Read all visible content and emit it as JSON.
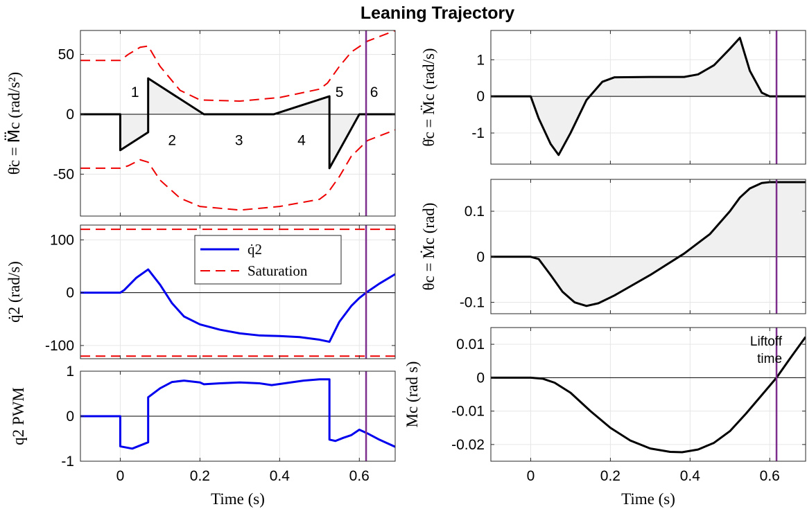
{
  "figure_title": "Leaning Trajectory",
  "colors": {
    "blue": "#0000ee",
    "red": "#ee0000",
    "black": "#000000",
    "purple": "#7e2f8e",
    "fill": "#f0f0f0",
    "grid": "#e6e6e6"
  },
  "chart_data": [
    {
      "id": "jerk",
      "type": "line",
      "ylabel": "θ̈c = M⃛c (rad/s²)",
      "xlim": [
        -0.1,
        0.69
      ],
      "ylim": [
        -85,
        70
      ],
      "yticks": [
        -50,
        0,
        50
      ],
      "ytick_labels": [
        "-50",
        "0",
        "50"
      ],
      "grid": true,
      "liftoff_time": 0.617,
      "fill_signal": true,
      "signal": {
        "color": "black",
        "x": [
          -0.1,
          0,
          0,
          0.07,
          0.07,
          0.21,
          0.385,
          0.525,
          0.525,
          0.6,
          0.69
        ],
        "y": [
          0,
          0,
          -30,
          -15,
          30,
          0,
          0,
          15,
          -45,
          0,
          0
        ]
      },
      "bounds": [
        {
          "color": "red",
          "x": [
            -0.1,
            0,
            0.02,
            0.05,
            0.07,
            0.1,
            0.15,
            0.2,
            0.3,
            0.4,
            0.5,
            0.52,
            0.55,
            0.58,
            0.62,
            0.69
          ],
          "y": [
            45,
            45,
            50,
            56,
            57,
            40,
            20,
            12,
            11,
            14,
            21,
            26,
            40,
            52,
            61,
            70
          ]
        },
        {
          "color": "red",
          "x": [
            -0.1,
            0,
            0.02,
            0.05,
            0.07,
            0.1,
            0.15,
            0.2,
            0.3,
            0.4,
            0.5,
            0.52,
            0.55,
            0.58,
            0.62,
            0.69
          ],
          "y": [
            -45,
            -45,
            -43,
            -38,
            -40,
            -55,
            -70,
            -77,
            -80,
            -77,
            -71,
            -66,
            -52,
            -35,
            -22,
            -13
          ]
        }
      ],
      "segment_labels": [
        {
          "text": "1",
          "x": 0.037,
          "y": 19
        },
        {
          "text": "2",
          "x": 0.13,
          "y": -21
        },
        {
          "text": "3",
          "x": 0.298,
          "y": -21
        },
        {
          "text": "4",
          "x": 0.455,
          "y": -21
        },
        {
          "text": "5",
          "x": 0.55,
          "y": 19
        },
        {
          "text": "6",
          "x": 0.637,
          "y": 19
        }
      ]
    },
    {
      "id": "qdot",
      "type": "line",
      "ylabel": "q̇2 (rad/s)",
      "xlim": [
        -0.1,
        0.69
      ],
      "ylim": [
        -125,
        128
      ],
      "yticks": [
        -100,
        0,
        100
      ],
      "ytick_labels": [
        "-100",
        "0",
        "100"
      ],
      "grid": true,
      "liftoff_time": 0.617,
      "legend": {
        "location": "top-right",
        "entries": [
          {
            "label": "q̇2",
            "style": "solid",
            "color": "blue"
          },
          {
            "label": "Saturation",
            "style": "dashed",
            "color": "red"
          }
        ]
      },
      "signal": {
        "color": "blue",
        "x": [
          -0.1,
          0,
          0.01,
          0.04,
          0.07,
          0.1,
          0.13,
          0.16,
          0.2,
          0.25,
          0.3,
          0.35,
          0.4,
          0.45,
          0.5,
          0.525,
          0.55,
          0.58,
          0.6,
          0.617,
          0.65,
          0.69
        ],
        "y": [
          0,
          0,
          5,
          28,
          44,
          15,
          -20,
          -45,
          -60,
          -70,
          -77,
          -81,
          -82,
          -84,
          -89,
          -93,
          -55,
          -25,
          -10,
          0,
          17,
          35
        ]
      },
      "bounds": [
        {
          "color": "red",
          "x": [
            -0.1,
            0.69
          ],
          "y": [
            120,
            120
          ]
        },
        {
          "color": "red",
          "x": [
            -0.1,
            0.69
          ],
          "y": [
            -120,
            -120
          ]
        }
      ]
    },
    {
      "id": "pwm",
      "type": "line",
      "ylabel": "q2 PWM",
      "xlabel": "Time (s)",
      "xlim": [
        -0.1,
        0.69
      ],
      "ylim": [
        -1,
        1
      ],
      "yticks": [
        -1,
        0,
        1
      ],
      "ytick_labels": [
        "-1",
        "0",
        "1"
      ],
      "xticks": [
        0,
        0.2,
        0.4,
        0.6
      ],
      "xtick_labels": [
        "0",
        "0.2",
        "0.4",
        "0.6"
      ],
      "grid": true,
      "liftoff_time": 0.617,
      "signal": {
        "color": "blue",
        "x": [
          -0.1,
          0,
          0,
          0.03,
          0.07,
          0.07,
          0.1,
          0.13,
          0.16,
          0.2,
          0.21,
          0.25,
          0.3,
          0.35,
          0.38,
          0.42,
          0.46,
          0.5,
          0.525,
          0.525,
          0.54,
          0.56,
          0.58,
          0.6,
          0.62,
          0.65,
          0.69
        ],
        "y": [
          0,
          0,
          -0.67,
          -0.72,
          -0.58,
          0.42,
          0.62,
          0.76,
          0.79,
          0.75,
          0.71,
          0.73,
          0.75,
          0.73,
          0.69,
          0.74,
          0.79,
          0.82,
          0.82,
          -0.52,
          -0.55,
          -0.48,
          -0.42,
          -0.3,
          -0.38,
          -0.52,
          -0.68
        ]
      }
    },
    {
      "id": "theta_ddot",
      "type": "line",
      "ylabel": "θ̇c = M̈c (rad/s)",
      "xlim": [
        -0.1,
        0.69
      ],
      "ylim": [
        -1.85,
        1.8
      ],
      "yticks": [
        -1,
        0,
        1
      ],
      "ytick_labels": [
        "-1",
        "0",
        "1"
      ],
      "grid": true,
      "liftoff_time": 0.617,
      "fill_signal": true,
      "signal": {
        "color": "black",
        "x": [
          -0.1,
          0,
          0.02,
          0.05,
          0.07,
          0.1,
          0.14,
          0.18,
          0.21,
          0.3,
          0.385,
          0.42,
          0.46,
          0.5,
          0.525,
          0.55,
          0.58,
          0.6,
          0.69
        ],
        "y": [
          0,
          0,
          -0.6,
          -1.3,
          -1.6,
          -1.0,
          -0.1,
          0.4,
          0.52,
          0.53,
          0.53,
          0.6,
          0.85,
          1.3,
          1.6,
          0.7,
          0.1,
          0,
          0
        ]
      }
    },
    {
      "id": "theta",
      "type": "line",
      "ylabel": "θc = Ṁc (rad)",
      "xlim": [
        -0.1,
        0.69
      ],
      "ylim": [
        -0.125,
        0.17
      ],
      "yticks": [
        -0.1,
        0,
        0.1
      ],
      "ytick_labels": [
        "-0.1",
        "0",
        "0.1"
      ],
      "grid": true,
      "liftoff_time": 0.617,
      "fill_signal": true,
      "signal": {
        "color": "black",
        "x": [
          -0.1,
          0,
          0.02,
          0.05,
          0.08,
          0.11,
          0.14,
          0.17,
          0.21,
          0.3,
          0.385,
          0.45,
          0.5,
          0.525,
          0.55,
          0.58,
          0.6,
          0.69
        ],
        "y": [
          0,
          0,
          -0.005,
          -0.04,
          -0.077,
          -0.1,
          -0.108,
          -0.102,
          -0.085,
          -0.04,
          0.007,
          0.05,
          0.1,
          0.13,
          0.15,
          0.162,
          0.164,
          0.164
        ]
      }
    },
    {
      "id": "M",
      "type": "line",
      "ylabel": "Mc (rad s)",
      "xlabel": "Time (s)",
      "xlim": [
        -0.1,
        0.69
      ],
      "ylim": [
        -0.025,
        0.015
      ],
      "yticks": [
        -0.02,
        -0.01,
        0,
        0.01
      ],
      "ytick_labels": [
        "-0.02",
        "-0.01",
        "0",
        "0.01"
      ],
      "xticks": [
        0,
        0.2,
        0.4,
        0.6
      ],
      "xtick_labels": [
        "0",
        "0.2",
        "0.4",
        "0.6"
      ],
      "grid": true,
      "liftoff_time": 0.617,
      "annotation": {
        "text": [
          "Liftoff",
          "time"
        ]
      },
      "signal": {
        "color": "black",
        "x": [
          -0.1,
          0,
          0.03,
          0.06,
          0.1,
          0.15,
          0.2,
          0.25,
          0.3,
          0.35,
          0.38,
          0.42,
          0.46,
          0.5,
          0.54,
          0.58,
          0.617,
          0.65,
          0.69
        ],
        "y": [
          0,
          0,
          -0.0003,
          -0.0015,
          -0.0045,
          -0.01,
          -0.015,
          -0.0188,
          -0.0212,
          -0.0222,
          -0.0223,
          -0.0215,
          -0.0195,
          -0.016,
          -0.0108,
          -0.0052,
          0,
          0.0056,
          0.0122
        ]
      }
    }
  ]
}
